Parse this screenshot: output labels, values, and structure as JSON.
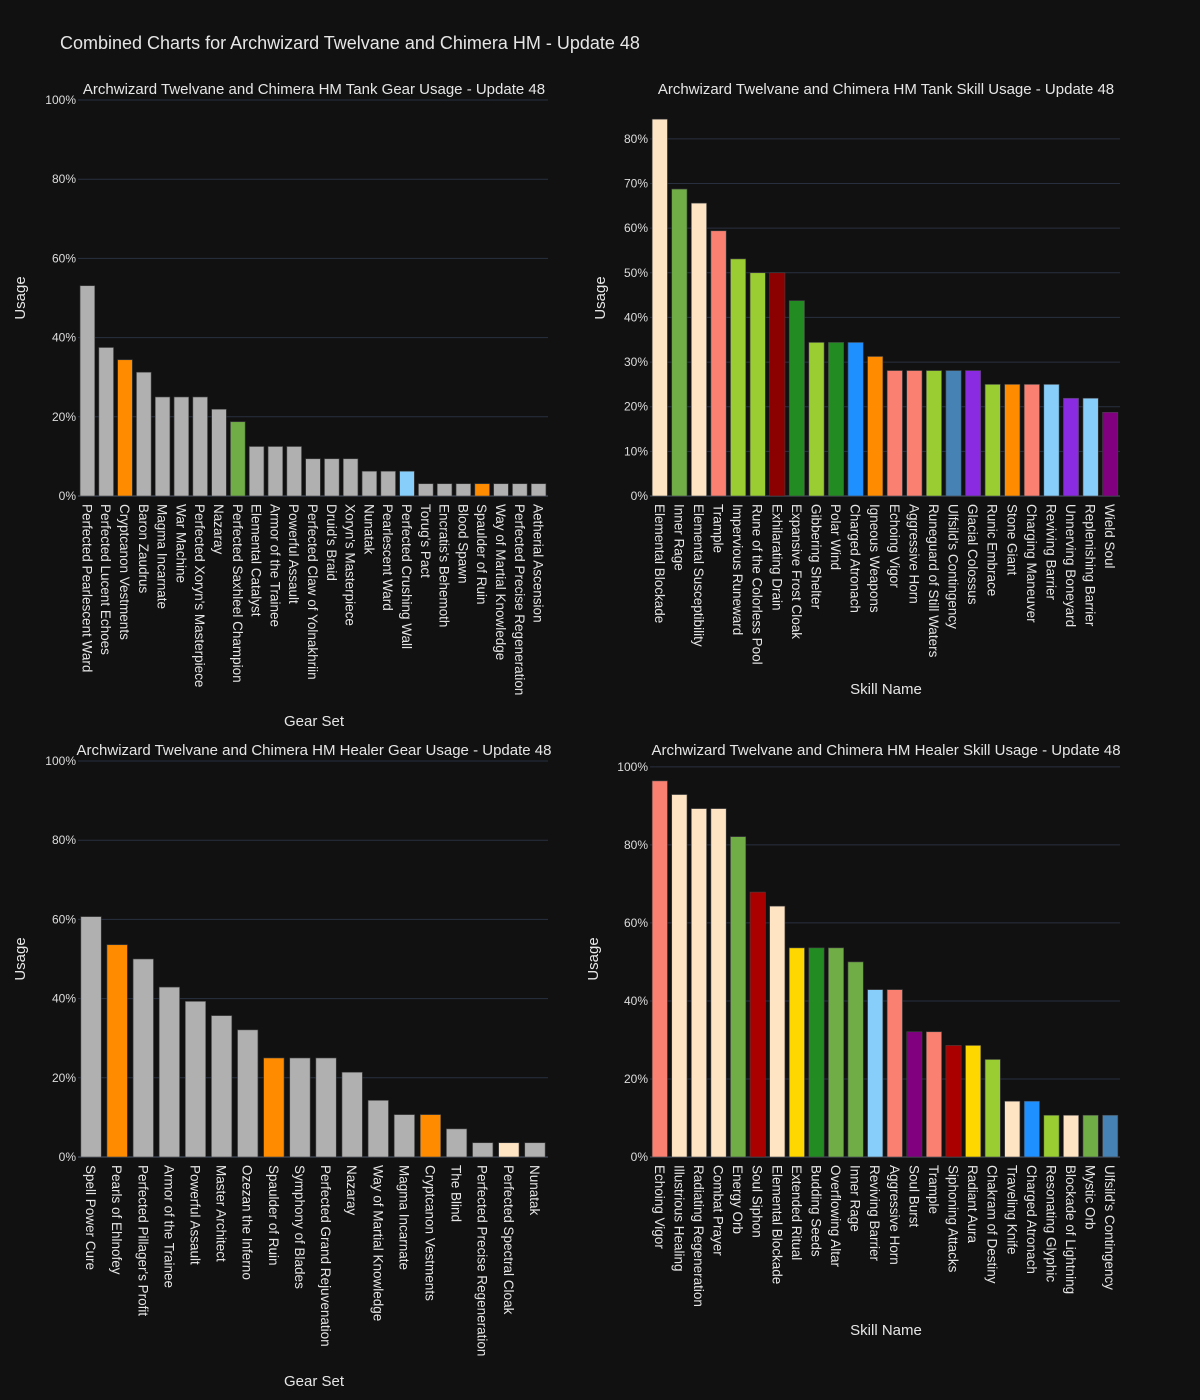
{
  "title": "Combined Charts for Archwizard Twelvane and Chimera HM - Update 48",
  "colors": {
    "gray": "#B0B0B0",
    "orange": "#FF8C00",
    "green": "#70AD47",
    "lightblue": "#87CEFA",
    "bisque": "#FFE4C4",
    "salmon": "#FA8072",
    "yellowgreen": "#9ACD32",
    "darkred": "#8B0000",
    "forestgreen": "#228B22",
    "dodgerblue": "#1E90FF",
    "steelblue": "#4682B4",
    "blueviolet": "#8A2BE2",
    "purple": "#800080",
    "red": "#AA0000",
    "gold": "#FFD700"
  },
  "chart_data": [
    {
      "type": "bar",
      "title": "Archwizard Twelvane and Chimera HM Tank Gear Usage - Update 48",
      "xlabel": "Gear Set",
      "ylabel": "Usage",
      "ylim": [
        0,
        100
      ],
      "yticks": [
        0,
        20,
        40,
        60,
        80,
        100
      ],
      "tick_suffix": "%",
      "grid": true,
      "categories": [
        "Perfected Pearlescent Ward",
        "Perfected Lucent Echoes",
        "Cryptcanon Vestments",
        "Baron Zaudrus",
        "Magma Incarnate",
        "War Machine",
        "Perfected Xoryn's Masterpiece",
        "Nazaray",
        "Perfected Saxhleel Champion",
        "Elemental Catalyst",
        "Armor of the Trainee",
        "Powerful Assault",
        "Perfected Claw of Yolnakhriin",
        "Druid's Braid",
        "Xoryn's Masterpiece",
        "Nunatak",
        "Pearlescent Ward",
        "Perfected Crushing Wall",
        "Torug's Pact",
        "Encratis's Behemoth",
        "Blood Spawn",
        "Spaulder of Ruin",
        "Way of Martial Knowledge",
        "Perfected Precise Regeneration",
        "Aetherial Ascension"
      ],
      "values": [
        53.1,
        37.5,
        34.4,
        31.25,
        25,
        25,
        25,
        21.9,
        18.75,
        12.5,
        12.5,
        12.5,
        9.4,
        9.4,
        9.4,
        6.25,
        6.25,
        6.25,
        3.1,
        3.1,
        3.1,
        3.1,
        3.1,
        3.1,
        3.1
      ],
      "bar_colors": [
        "gray",
        "gray",
        "orange",
        "gray",
        "gray",
        "gray",
        "gray",
        "gray",
        "green",
        "gray",
        "gray",
        "gray",
        "gray",
        "gray",
        "gray",
        "gray",
        "gray",
        "lightblue",
        "gray",
        "gray",
        "gray",
        "orange",
        "gray",
        "gray",
        "gray"
      ]
    },
    {
      "type": "bar",
      "title": "Archwizard Twelvane and Chimera HM Tank Skill Usage - Update 48",
      "xlabel": "Skill Name",
      "ylabel": "Usage",
      "ylim": [
        0,
        88.7
      ],
      "yticks": [
        0,
        10,
        20,
        30,
        40,
        50,
        60,
        70,
        80
      ],
      "tick_suffix": "%",
      "grid": true,
      "categories": [
        "Elemental Blockade",
        "Inner Rage",
        "Elemental Susceptibility",
        "Trample",
        "Impervious Runeward",
        "Rune of the Colorless Pool",
        "Exhilarating Drain",
        "Expansive Frost Cloak",
        "Gibbering Shelter",
        "Polar Wind",
        "Charged Atronach",
        "Igneous Weapons",
        "Echoing Vigor",
        "Aggressive Horn",
        "Runeguard of Still Waters",
        "Ulfsild's Contingency",
        "Glacial Colossus",
        "Runic Embrace",
        "Stone Giant",
        "Charging Maneuver",
        "Reviving Barrier",
        "Unnerving Boneyard",
        "Replenishing Barrier",
        "Wield Soul"
      ],
      "values": [
        84.4,
        68.75,
        65.6,
        59.4,
        53.1,
        50,
        50,
        43.75,
        34.4,
        34.4,
        34.4,
        31.25,
        28.1,
        28.1,
        28.1,
        28.1,
        28.1,
        25,
        25,
        25,
        25,
        21.9,
        21.9,
        18.75
      ],
      "bar_colors": [
        "bisque",
        "green",
        "bisque",
        "salmon",
        "yellowgreen",
        "yellowgreen",
        "darkred",
        "forestgreen",
        "yellowgreen",
        "forestgreen",
        "dodgerblue",
        "orange",
        "salmon",
        "salmon",
        "yellowgreen",
        "steelblue",
        "blueviolet",
        "yellowgreen",
        "orange",
        "salmon",
        "lightblue",
        "blueviolet",
        "lightblue",
        "purple"
      ]
    },
    {
      "type": "bar",
      "title": "Archwizard Twelvane and Chimera HM Healer Gear Usage - Update 48",
      "xlabel": "Gear Set",
      "ylabel": "Usage",
      "ylim": [
        0,
        100
      ],
      "yticks": [
        0,
        20,
        40,
        60,
        80,
        100
      ],
      "tick_suffix": "%",
      "grid": true,
      "categories": [
        "Spell Power Cure",
        "Pearls of Ehlnofey",
        "Perfected Pillager's Profit",
        "Armor of the Trainee",
        "Powerful Assault",
        "Master Architect",
        "Ozezan the Inferno",
        "Spaulder of Ruin",
        "Symphony of Blades",
        "Perfected Grand Rejuvenation",
        "Nazaray",
        "Way of Martial Knowledge",
        "Magma Incarnate",
        "Cryptcanon Vestments",
        "The Blind",
        "Perfected Precise Regeneration",
        "Perfected Spectral Cloak",
        "Nunatak"
      ],
      "values": [
        60.7,
        53.6,
        50,
        42.9,
        39.3,
        35.7,
        32.1,
        25,
        25,
        25,
        21.4,
        14.3,
        10.7,
        10.7,
        7.1,
        3.6,
        3.6,
        3.6
      ],
      "bar_colors": [
        "gray",
        "orange",
        "gray",
        "gray",
        "gray",
        "gray",
        "gray",
        "orange",
        "gray",
        "gray",
        "gray",
        "gray",
        "gray",
        "orange",
        "gray",
        "gray",
        "bisque",
        "gray"
      ]
    },
    {
      "type": "bar",
      "title": "Archwizard Twelvane and Chimera HM Healer Skill Usage - Update 48",
      "xlabel": "Skill Name",
      "ylabel": "Usage",
      "ylim": [
        0,
        101.5
      ],
      "yticks": [
        0,
        20,
        40,
        60,
        80,
        100
      ],
      "tick_suffix": "%",
      "grid": true,
      "categories": [
        "Echoing Vigor",
        "Illustrious Healing",
        "Radiating Regeneration",
        "Combat Prayer",
        "Energy Orb",
        "Soul Siphon",
        "Elemental Blockade",
        "Extended Ritual",
        "Budding Seeds",
        "Overflowing Altar",
        "Inner Rage",
        "Reviving Barrier",
        "Aggressive Horn",
        "Soul Burst",
        "Trample",
        "Siphoning Attacks",
        "Radiant Aura",
        "Chakram of Destiny",
        "Traveling Knife",
        "Charged Atronach",
        "Resonating Glyphic",
        "Blockade of Lightning",
        "Mystic Orb",
        "Ulfsild's Contingency"
      ],
      "values": [
        96.4,
        92.9,
        89.3,
        89.3,
        82.1,
        67.9,
        64.3,
        53.6,
        53.6,
        53.6,
        50,
        42.9,
        42.9,
        32.1,
        32.1,
        28.6,
        28.6,
        25,
        14.3,
        14.3,
        10.7,
        10.7,
        10.7,
        10.7
      ],
      "bar_colors": [
        "salmon",
        "bisque",
        "bisque",
        "bisque",
        "green",
        "red",
        "bisque",
        "gold",
        "forestgreen",
        "green",
        "green",
        "lightblue",
        "salmon",
        "purple",
        "salmon",
        "red",
        "gold",
        "yellowgreen",
        "bisque",
        "dodgerblue",
        "yellowgreen",
        "bisque",
        "green",
        "steelblue"
      ]
    }
  ]
}
